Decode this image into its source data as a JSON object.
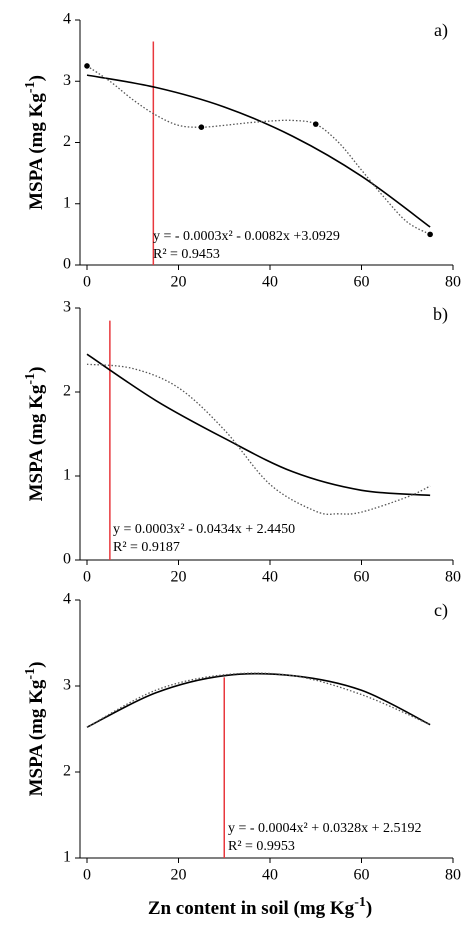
{
  "chart_data": [
    {
      "type": "line",
      "panel_label": "a)",
      "y_label": [
        "MSPA (mg Kg",
        "-1",
        ")"
      ],
      "annotations": [
        "y = - 0.0003x² - 0.0082x +3.0929",
        "R² = 0.9453"
      ],
      "xlim": [
        0,
        80
      ],
      "xticks": [
        0,
        20,
        40,
        60,
        80
      ],
      "ylim": [
        0,
        4
      ],
      "yticks": [
        0,
        1,
        2,
        3,
        4
      ],
      "reference_line": {
        "x": 14.5,
        "ymax": 3.65,
        "color": "#e8383d"
      },
      "series": [
        {
          "style": "solid",
          "color": "#000000",
          "x": [
            0,
            15,
            30,
            45,
            60,
            75
          ],
          "values": [
            3.1,
            2.9,
            2.58,
            2.1,
            1.45,
            0.62
          ]
        },
        {
          "style": "dotted",
          "color": "#555555",
          "x": [
            0,
            5,
            10,
            15,
            20,
            25,
            30,
            35,
            40,
            45,
            50,
            55,
            60,
            65,
            70,
            75
          ],
          "values": [
            3.25,
            3.0,
            2.7,
            2.45,
            2.28,
            2.25,
            2.28,
            2.32,
            2.35,
            2.36,
            2.3,
            2.0,
            1.55,
            1.1,
            0.7,
            0.5
          ]
        },
        {
          "style": "markers",
          "color": "#000000",
          "x": [
            0,
            25,
            50,
            75
          ],
          "values": [
            3.25,
            2.25,
            2.3,
            0.5
          ]
        }
      ]
    },
    {
      "type": "line",
      "panel_label": "b)",
      "y_label": [
        "MSPA (mg Kg",
        "-1",
        ")"
      ],
      "annotations": [
        "y = 0.0003x² - 0.0434x + 2.4450",
        "R² = 0.9187"
      ],
      "xlim": [
        0,
        80
      ],
      "xticks": [
        0,
        20,
        40,
        60,
        80
      ],
      "ylim": [
        0,
        3
      ],
      "yticks": [
        0,
        1,
        2,
        3
      ],
      "reference_line": {
        "x": 5,
        "ymax": 2.85,
        "color": "#e8383d"
      },
      "series": [
        {
          "style": "solid",
          "color": "#000000",
          "x": [
            0,
            15,
            30,
            45,
            60,
            75
          ],
          "values": [
            2.45,
            1.9,
            1.45,
            1.05,
            0.83,
            0.77
          ]
        },
        {
          "style": "dotted",
          "color": "#555555",
          "x": [
            0,
            10,
            20,
            30,
            40,
            50,
            55,
            60,
            70,
            75
          ],
          "values": [
            2.33,
            2.28,
            2.05,
            1.55,
            0.9,
            0.58,
            0.55,
            0.57,
            0.75,
            0.88
          ]
        }
      ]
    },
    {
      "type": "line",
      "panel_label": "c)",
      "y_label": [
        "MSPA (mg Kg",
        "-1",
        ")"
      ],
      "x_label": [
        "Zn content in soil (mg Kg",
        "-1",
        ")"
      ],
      "annotations": [
        "y = - 0.0004x² + 0.0328x + 2.5192",
        "R² = 0.9953"
      ],
      "xlim": [
        0,
        80
      ],
      "xticks": [
        0,
        20,
        40,
        60,
        80
      ],
      "ylim": [
        1,
        4
      ],
      "yticks": [
        1,
        2,
        3,
        4
      ],
      "reference_line": {
        "x": 30,
        "ymax": 3.1,
        "color": "#e8383d"
      },
      "series": [
        {
          "style": "solid",
          "color": "#000000",
          "x": [
            0,
            15,
            30,
            45,
            60,
            75
          ],
          "values": [
            2.52,
            2.92,
            3.12,
            3.12,
            2.95,
            2.55
          ]
        },
        {
          "style": "dotted",
          "color": "#555555",
          "x": [
            0,
            15,
            30,
            45,
            60,
            75
          ],
          "values": [
            2.52,
            2.95,
            3.13,
            3.12,
            2.9,
            2.55
          ]
        }
      ]
    }
  ]
}
